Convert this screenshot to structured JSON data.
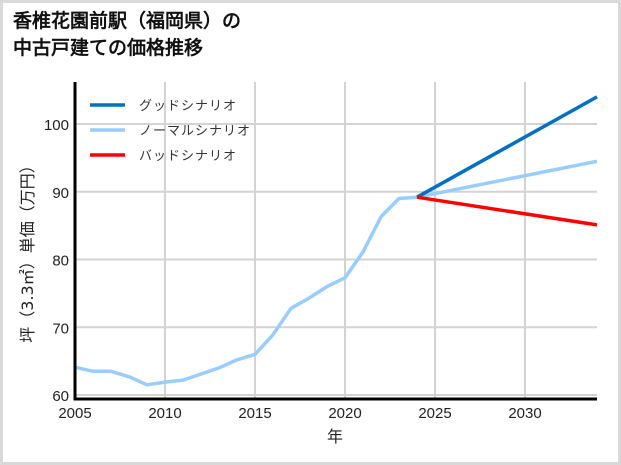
{
  "header": {
    "title_line1": "香椎花園前駅（福岡県）の",
    "title_line2": "中古戸建ての価格推移"
  },
  "colors": {
    "good": "#0070c0",
    "normal": "#99ccff",
    "bad": "#ff0000",
    "grid": "#d3d3d3",
    "axis": "#000000",
    "frame": "#d9d9d9"
  },
  "chart_data": {
    "type": "line",
    "title": "香椎花園前駅（福岡県）の中古戸建ての価格推移",
    "xlabel": "年",
    "ylabel": "坪（3.3㎡）単価（万円）",
    "xlim": [
      2005,
      2034
    ],
    "ylim": [
      59.4,
      106.2
    ],
    "xticks": [
      2005,
      2010,
      2015,
      2020,
      2025,
      2030
    ],
    "yticks": [
      60,
      70,
      80,
      90,
      100
    ],
    "grid": true,
    "legend_position": "upper left",
    "legend": [
      "グッドシナリオ",
      "ノーマルシナリオ",
      "バッドシナリオ"
    ],
    "series": [
      {
        "name": "グッドシナリオ",
        "color": "#0070c0",
        "x": [
          2024,
          2034
        ],
        "values": [
          89.2,
          104.0
        ]
      },
      {
        "name": "ノーマルシナリオ",
        "color": "#99ccff",
        "x": [
          2005,
          2006,
          2007,
          2008,
          2009,
          2010,
          2011,
          2012,
          2013,
          2014,
          2015,
          2016,
          2017,
          2018,
          2019,
          2020,
          2021,
          2022,
          2023,
          2024,
          2034
        ],
        "values": [
          64.1,
          63.5,
          63.5,
          62.7,
          61.5,
          61.9,
          62.2,
          63.1,
          64.0,
          65.2,
          66.0,
          68.9,
          72.8,
          74.3,
          76.0,
          77.3,
          81.1,
          86.3,
          89.0,
          89.2,
          94.5
        ]
      },
      {
        "name": "バッドシナリオ",
        "color": "#ff0000",
        "x": [
          2024,
          2034
        ],
        "values": [
          89.2,
          85.1
        ]
      }
    ]
  }
}
